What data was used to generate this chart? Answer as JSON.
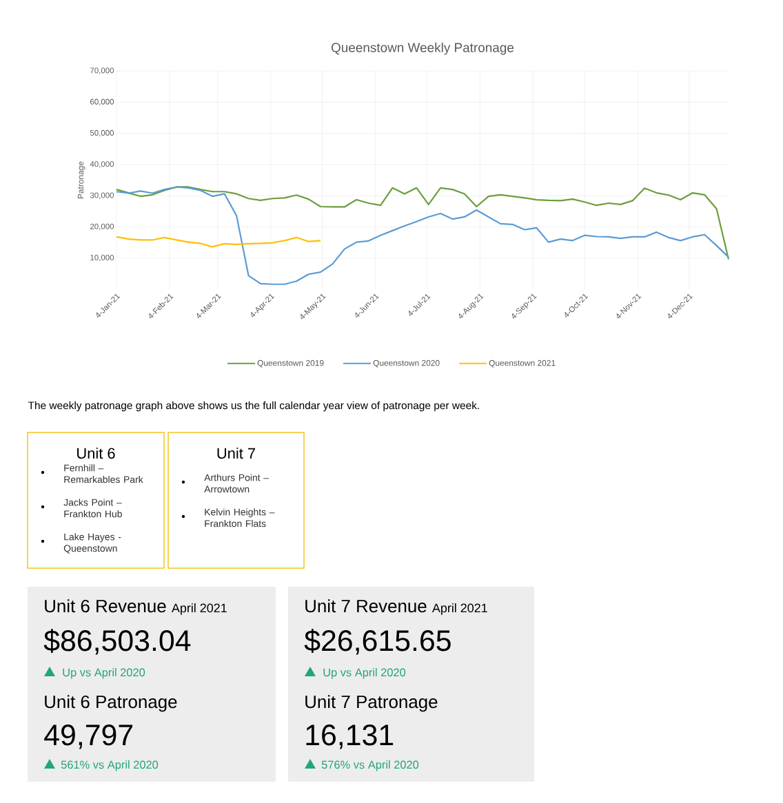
{
  "chart_data": [
    {
      "type": "line",
      "title": "Queenstown Weekly Patronage",
      "ylabel": "Patronage",
      "x": [
        "2021-01-04",
        "2021-01-11",
        "2021-01-18",
        "2021-01-25",
        "2021-02-01",
        "2021-02-08",
        "2021-02-15",
        "2021-02-22",
        "2021-03-01",
        "2021-03-08",
        "2021-03-15",
        "2021-03-22",
        "2021-03-29",
        "2021-04-05",
        "2021-04-12",
        "2021-04-19",
        "2021-04-26",
        "2021-05-03",
        "2021-05-10",
        "2021-05-17",
        "2021-05-24",
        "2021-05-31",
        "2021-06-07",
        "2021-06-14",
        "2021-06-21",
        "2021-06-28",
        "2021-07-05",
        "2021-07-12",
        "2021-07-19",
        "2021-07-26",
        "2021-08-02",
        "2021-08-09",
        "2021-08-16",
        "2021-08-23",
        "2021-08-30",
        "2021-09-06",
        "2021-09-13",
        "2021-09-20",
        "2021-09-27",
        "2021-10-04",
        "2021-10-11",
        "2021-10-18",
        "2021-10-25",
        "2021-11-01",
        "2021-11-08",
        "2021-11-15",
        "2021-11-22",
        "2021-11-29",
        "2021-12-06",
        "2021-12-13",
        "2021-12-20",
        "2021-12-27"
      ],
      "series": [
        {
          "name": "Queenstown 2019",
          "color": "#6b9d3c",
          "values": [
            32000,
            30900,
            29800,
            30300,
            31700,
            32800,
            32800,
            32000,
            31300,
            31300,
            30600,
            29100,
            28500,
            29100,
            29300,
            30200,
            28900,
            26500,
            26400,
            26400,
            28700,
            27600,
            26900,
            32500,
            30600,
            32500,
            27200,
            32500,
            32000,
            30600,
            26500,
            29800,
            30300,
            29800,
            29300,
            28700,
            28500,
            28400,
            28900,
            28000,
            26900,
            27600,
            27200,
            28400,
            32400,
            30900,
            30200,
            28700,
            30900,
            30300,
            25800,
            9600
          ]
        },
        {
          "name": "Queenstown 2020",
          "color": "#5b9bd5",
          "values": [
            31300,
            30800,
            31500,
            30800,
            32000,
            32800,
            32500,
            31700,
            29800,
            30600,
            23600,
            4400,
            1800,
            1600,
            1600,
            2600,
            4800,
            5500,
            8100,
            12900,
            15100,
            15500,
            17300,
            18800,
            20300,
            21700,
            23200,
            24300,
            22500,
            23200,
            25400,
            23200,
            21000,
            20800,
            19100,
            19700,
            15100,
            16100,
            15600,
            17300,
            16900,
            16800,
            16300,
            16800,
            16800,
            18300,
            16600,
            15600,
            16800,
            17500,
            14000,
            10300
          ]
        },
        {
          "name": "Queenstown 2021",
          "color": "#ffc000",
          "values": [
            16800,
            16100,
            15800,
            15800,
            16600,
            15800,
            15100,
            14700,
            13600,
            14600,
            14400,
            14600,
            14700,
            14900,
            15600,
            16600,
            15300,
            15600,
            null,
            null,
            null,
            null,
            null,
            null,
            null,
            null,
            null,
            null,
            null,
            null,
            null,
            null,
            null,
            null,
            null,
            null,
            null,
            null,
            null,
            null,
            null,
            null,
            null,
            null,
            null,
            null,
            null,
            null,
            null,
            null,
            null,
            null
          ]
        }
      ],
      "xlim": [
        "2021-01-04",
        "2021-12-27"
      ],
      "ylim": [
        0,
        70000
      ],
      "xticks": [
        {
          "value": "2021-01-04",
          "label": "4-Jan-21"
        },
        {
          "value": "2021-02-04",
          "label": "4-Feb-21"
        },
        {
          "value": "2021-03-04",
          "label": "4-Mar-21"
        },
        {
          "value": "2021-04-04",
          "label": "4-Apr-21"
        },
        {
          "value": "2021-05-04",
          "label": "4-May-21"
        },
        {
          "value": "2021-06-04",
          "label": "4-Jun-21"
        },
        {
          "value": "2021-07-04",
          "label": "4-Jul-21"
        },
        {
          "value": "2021-08-04",
          "label": "4-Aug-21"
        },
        {
          "value": "2021-09-04",
          "label": "4-Sep-21"
        },
        {
          "value": "2021-10-04",
          "label": "4-Oct-21"
        },
        {
          "value": "2021-11-04",
          "label": "4-Nov-21"
        },
        {
          "value": "2021-12-04",
          "label": "4-Dec-21"
        }
      ],
      "yticks": [
        {
          "value": 10000,
          "label": "10,000"
        },
        {
          "value": 20000,
          "label": "20,000"
        },
        {
          "value": 30000,
          "label": "30,000"
        },
        {
          "value": 40000,
          "label": "40,000"
        },
        {
          "value": 50000,
          "label": "50,000"
        },
        {
          "value": 60000,
          "label": "60,000"
        },
        {
          "value": 70000,
          "label": "70,000"
        }
      ],
      "grid": true,
      "legend": "bottom",
      "annotations": [
        "The weekly patronage graph above shows us the full calendar year view of patronage per week."
      ]
    },
    {
      "type": "other",
      "title": "Unit 6",
      "annotations": [
        "Fernhill – Remarkables Park",
        "Jacks Point – Frankton Hub",
        "Lake Hayes - Queenstown"
      ]
    },
    {
      "type": "other",
      "title": "Unit 7",
      "annotations": [
        "Arthurs Point – Arrowtown",
        "Kelvin Heights – Frankton Flats"
      ]
    },
    {
      "type": "other",
      "title": "Unit 6 Revenue",
      "subtitle": "April 2021",
      "annotations": [
        "$86,503.04",
        "Up vs April 2020",
        "Unit 6 Patronage",
        "49,797",
        "561% vs April 2020"
      ]
    },
    {
      "type": "other",
      "title": "Unit 7 Revenue",
      "subtitle": "April 2021",
      "annotations": [
        "$26,615.65",
        "Up vs April 2020",
        "Unit 7 Patronage",
        "16,131",
        "576% vs April 2020"
      ]
    }
  ]
}
